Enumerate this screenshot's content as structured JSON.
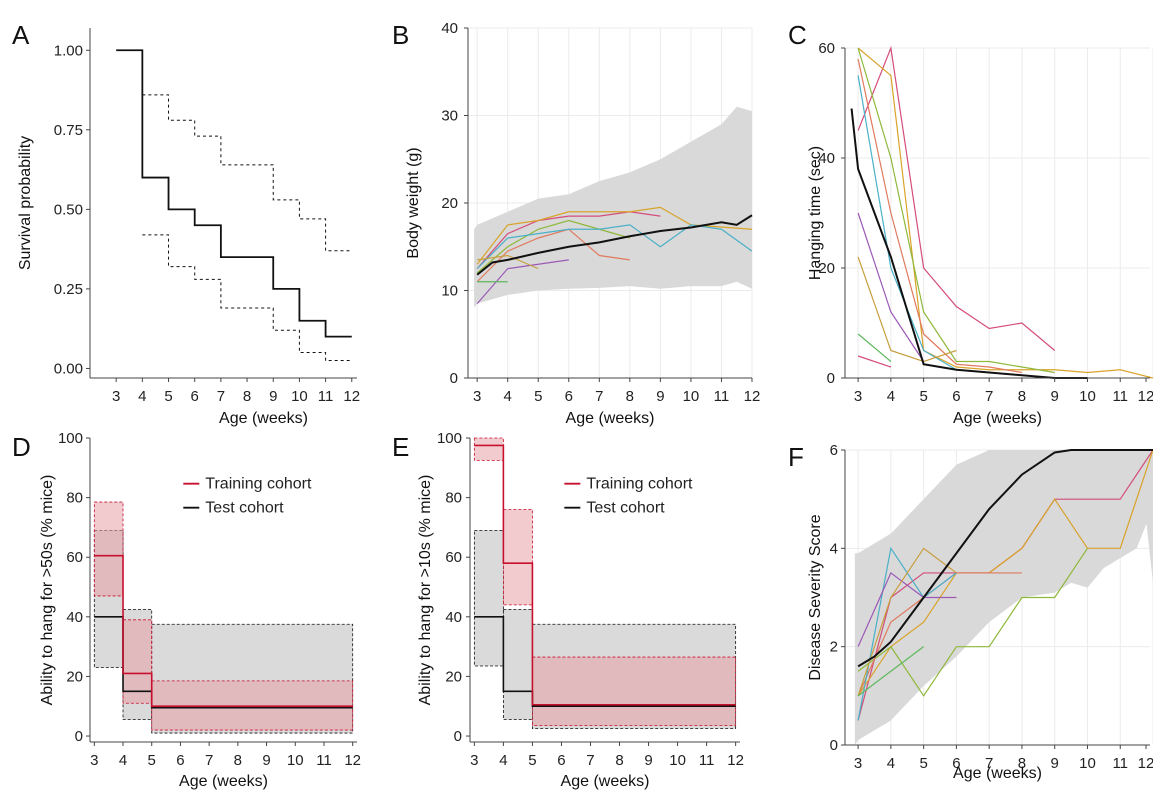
{
  "colors": {
    "dark": "#111111",
    "training": "#c8102e",
    "training_fill": "#e8a0a8",
    "test_fill": "#d4d4d4",
    "gray_band": "#d9d9d9",
    "grid": "#ebebeb",
    "individual": [
      "#d44d7a",
      "#d9a32a",
      "#8fb83a",
      "#e07a5f",
      "#4ab0c8",
      "#9b59b6",
      "#c8a040",
      "#5cb85c"
    ]
  },
  "chart_data": [
    {
      "panel": "A",
      "type": "line",
      "xlabel": "Age (weeks)",
      "ylabel": "Survival probability",
      "xlim": [
        2.0,
        12.2
      ],
      "ylim": [
        -0.03,
        1.07
      ],
      "xticks": [
        "3",
        "4",
        "5",
        "6",
        "7",
        "8",
        "9",
        "10",
        "11",
        "12"
      ],
      "xtick_values": [
        3,
        4,
        5,
        6,
        7,
        8,
        9,
        10,
        11,
        12
      ],
      "yticks": [
        "0.00",
        "0.25",
        "0.50",
        "0.75",
        "1.00"
      ],
      "ytick_values": [
        0,
        0.25,
        0.5,
        0.75,
        1.0
      ],
      "grid": false,
      "series": [
        {
          "style": "step-solid",
          "x": [
            3,
            4,
            5,
            6,
            7,
            9,
            10,
            11,
            12
          ],
          "y": [
            1.0,
            0.6,
            0.5,
            0.45,
            0.35,
            0.25,
            0.15,
            0.1,
            0.1
          ]
        },
        {
          "style": "step-dashed",
          "x": [
            4,
            5,
            6,
            7,
            9,
            10,
            11,
            12
          ],
          "y": [
            0.86,
            0.78,
            0.73,
            0.64,
            0.53,
            0.47,
            0.37,
            0.37
          ]
        },
        {
          "style": "step-dashed",
          "x": [
            4,
            5,
            6,
            7,
            9,
            10,
            11,
            12
          ],
          "y": [
            0.42,
            0.32,
            0.28,
            0.19,
            0.12,
            0.05,
            0.025,
            0.025
          ]
        }
      ]
    },
    {
      "panel": "B",
      "type": "line",
      "xlabel": "Age (weeks)",
      "ylabel": "Body weight (g)",
      "xlim": [
        2.7,
        12.0
      ],
      "ylim": [
        0,
        40
      ],
      "xticks": [
        "3",
        "4",
        "5",
        "6",
        "7",
        "8",
        "9",
        "10",
        "11",
        "12"
      ],
      "xtick_values": [
        3,
        4,
        5,
        6,
        7,
        8,
        9,
        10,
        11,
        12
      ],
      "yticks": [
        "0",
        "10",
        "20",
        "30",
        "40"
      ],
      "ytick_values": [
        0,
        10,
        20,
        30,
        40
      ],
      "grid": true,
      "band": {
        "x": [
          2.9,
          3,
          4,
          5,
          6,
          7,
          8,
          9,
          10,
          11,
          11.5,
          12
        ],
        "upper": [
          17,
          17.5,
          19,
          20.5,
          21,
          22.5,
          23.5,
          25,
          27,
          29,
          31,
          30.5
        ],
        "lower": [
          8,
          8.5,
          9.5,
          10,
          10.2,
          10.3,
          10.5,
          10.2,
          10.5,
          10.5,
          11,
          10.2
        ]
      },
      "mean": {
        "x": [
          3,
          3.5,
          4,
          5,
          6,
          7,
          8,
          9,
          10,
          11,
          11.5,
          12
        ],
        "y": [
          11.8,
          13.2,
          13.5,
          14.3,
          15,
          15.5,
          16.2,
          16.8,
          17.2,
          17.8,
          17.5,
          18.6
        ]
      },
      "individuals": [
        {
          "x": [
            3,
            4,
            5,
            6,
            7,
            8,
            9
          ],
          "y": [
            12.5,
            16.5,
            18,
            18.5,
            18.5,
            19,
            18.5
          ]
        },
        {
          "x": [
            3,
            4,
            5,
            6,
            7,
            8,
            9,
            10,
            12
          ],
          "y": [
            13,
            17.5,
            18,
            19,
            19,
            19,
            19.5,
            17.5,
            17
          ]
        },
        {
          "x": [
            3,
            4,
            5,
            6,
            7,
            8
          ],
          "y": [
            12,
            15,
            17,
            18,
            17,
            16
          ]
        },
        {
          "x": [
            3,
            4,
            5,
            6,
            7,
            8
          ],
          "y": [
            11,
            14.5,
            16,
            17,
            14,
            13.5
          ]
        },
        {
          "x": [
            3,
            4,
            5,
            6,
            7,
            8,
            9,
            10,
            11,
            12
          ],
          "y": [
            12.5,
            16,
            16.5,
            17,
            17,
            17.5,
            15,
            17.5,
            17,
            14.5
          ]
        },
        {
          "x": [
            3,
            4,
            5,
            6
          ],
          "y": [
            8.5,
            12.5,
            13,
            13.5
          ]
        },
        {
          "x": [
            3,
            4,
            5
          ],
          "y": [
            13.5,
            14,
            12.5
          ]
        },
        {
          "x": [
            3,
            4
          ],
          "y": [
            11,
            11
          ]
        }
      ]
    },
    {
      "panel": "C",
      "type": "line",
      "xlabel": "Age (weeks)",
      "ylabel": "Hanging time (sec)",
      "xlim": [
        2.6,
        12.0
      ],
      "ylim": [
        0,
        60
      ],
      "xticks": [
        "3",
        "4",
        "5",
        "6",
        "7",
        "8",
        "9",
        "10",
        "11",
        "12"
      ],
      "xtick_values": [
        3,
        4,
        5,
        6,
        7,
        8,
        9,
        10,
        11,
        12
      ],
      "yticks": [
        "0",
        "20",
        "40",
        "60"
      ],
      "ytick_values": [
        0,
        20,
        40,
        60
      ],
      "grid": true,
      "mean": {
        "x": [
          2.8,
          3,
          4,
          5,
          6,
          7,
          8,
          9,
          10
        ],
        "y": [
          49,
          38,
          22,
          2.5,
          1.5,
          1,
          0.5,
          0,
          0
        ]
      },
      "individuals": [
        {
          "x": [
            3,
            4,
            5,
            6,
            7,
            8,
            9
          ],
          "y": [
            45,
            60,
            20,
            13,
            9,
            10,
            5
          ]
        },
        {
          "x": [
            3,
            4,
            5,
            6,
            7,
            8,
            9,
            10,
            11,
            12
          ],
          "y": [
            60,
            55,
            5,
            2,
            1.5,
            1.5,
            1.5,
            1,
            1.5,
            0
          ]
        },
        {
          "x": [
            3,
            4,
            5,
            6,
            7,
            8,
            9
          ],
          "y": [
            60,
            40,
            12,
            3,
            3,
            2,
            1
          ]
        },
        {
          "x": [
            3,
            4,
            5,
            6,
            7,
            8
          ],
          "y": [
            58,
            30,
            8,
            2.5,
            2,
            1
          ]
        },
        {
          "x": [
            3,
            4,
            5,
            6
          ],
          "y": [
            55,
            20,
            5,
            1.5
          ]
        },
        {
          "x": [
            3,
            4,
            5
          ],
          "y": [
            30,
            12,
            3
          ]
        },
        {
          "x": [
            3,
            4,
            5,
            6
          ],
          "y": [
            22,
            5,
            3,
            5
          ]
        },
        {
          "x": [
            3,
            4
          ],
          "y": [
            8,
            3
          ]
        },
        {
          "x": [
            3,
            4
          ],
          "y": [
            4,
            2
          ]
        }
      ]
    },
    {
      "panel": "D",
      "type": "line",
      "xlabel": "Age (weeks)",
      "ylabel": "Ability to hang for >50s (% mice)",
      "xlim": [
        2.85,
        12.15
      ],
      "ylim": [
        -2,
        100
      ],
      "xticks": [
        "3",
        "4",
        "5",
        "6",
        "7",
        "8",
        "9",
        "10",
        "11",
        "12"
      ],
      "xtick_values": [
        3,
        4,
        5,
        6,
        7,
        8,
        9,
        10,
        11,
        12
      ],
      "yticks": [
        "0",
        "20",
        "40",
        "60",
        "80",
        "100"
      ],
      "ytick_values": [
        0,
        20,
        40,
        60,
        80,
        100
      ],
      "grid": false,
      "legend": [
        {
          "name": "Training cohort",
          "color": "#c8102e"
        },
        {
          "name": "Test cohort",
          "color": "#111111"
        }
      ],
      "series": [
        {
          "name": "Training cohort",
          "steps": [
            [
              3,
              4,
              60.5,
              47,
              78.5
            ],
            [
              4,
              5,
              21,
              11,
              39
            ],
            [
              5,
              12,
              10,
              2,
              18.5
            ]
          ]
        },
        {
          "name": "Test cohort",
          "steps": [
            [
              3,
              4,
              40,
              23,
              69
            ],
            [
              4,
              5,
              15,
              5.5,
              42.5
            ],
            [
              5,
              12,
              9.5,
              1,
              37.5
            ]
          ]
        }
      ]
    },
    {
      "panel": "E",
      "type": "line",
      "xlabel": "Age (weeks)",
      "ylabel": "Ability to hang for >10s (% mice)",
      "xlim": [
        2.85,
        12.15
      ],
      "ylim": [
        -2,
        100
      ],
      "xticks": [
        "3",
        "4",
        "5",
        "6",
        "7",
        "8",
        "9",
        "10",
        "11",
        "12"
      ],
      "xtick_values": [
        3,
        4,
        5,
        6,
        7,
        8,
        9,
        10,
        11,
        12
      ],
      "yticks": [
        "0",
        "20",
        "40",
        "60",
        "80",
        "100"
      ],
      "ytick_values": [
        0,
        20,
        40,
        60,
        80,
        100
      ],
      "grid": false,
      "legend": [
        {
          "name": "Training cohort",
          "color": "#c8102e"
        },
        {
          "name": "Test cohort",
          "color": "#111111"
        }
      ],
      "series": [
        {
          "name": "Training cohort",
          "steps": [
            [
              3,
              4,
              97.5,
              92.5,
              100
            ],
            [
              4,
              5,
              58,
              44,
              76
            ],
            [
              5,
              12,
              10.5,
              3.5,
              26.5
            ]
          ]
        },
        {
          "name": "Test cohort",
          "steps": [
            [
              3,
              4,
              40,
              23.5,
              69
            ],
            [
              4,
              5,
              15,
              5.5,
              42.5
            ],
            [
              5,
              12,
              10,
              2.5,
              37.5
            ]
          ]
        }
      ]
    },
    {
      "panel": "F",
      "type": "line",
      "xlabel": "Age (weeks)",
      "ylabel": "Disease Severity Score",
      "xlim": [
        2.6,
        12.0
      ],
      "ylim": [
        0,
        6
      ],
      "xticks": [
        "3",
        "4",
        "5",
        "6",
        "7",
        "8",
        "9",
        "10",
        "11",
        "12"
      ],
      "xtick_values": [
        3,
        4,
        5,
        6,
        7,
        8,
        9,
        10,
        11,
        12
      ],
      "yticks": [
        "0",
        "2",
        "4",
        "6"
      ],
      "ytick_values": [
        0,
        2,
        4,
        6
      ],
      "grid": true,
      "band": {
        "x": [
          2.9,
          3,
          4,
          5,
          6,
          7,
          8,
          9,
          9.5,
          10,
          10.5,
          11,
          11.5,
          11.8,
          12
        ],
        "upper": [
          3.9,
          3.9,
          4.3,
          5,
          5.7,
          6,
          6,
          6,
          6,
          6,
          6,
          6,
          6,
          6,
          6
        ],
        "lower": [
          0,
          0.1,
          0.5,
          1.2,
          1.8,
          2.5,
          3,
          3.1,
          3.3,
          3.2,
          3.6,
          3.8,
          4,
          4.5,
          3.3
        ]
      },
      "mean": {
        "x": [
          3,
          3.5,
          4,
          5,
          6,
          7,
          8,
          9,
          9.5,
          10,
          11,
          12
        ],
        "y": [
          1.6,
          1.8,
          2.1,
          3,
          3.9,
          4.8,
          5.5,
          5.95,
          6,
          6,
          6,
          6
        ]
      },
      "individuals": [
        {
          "x": [
            3,
            4,
            5,
            6,
            7,
            8,
            9,
            10,
            11,
            12
          ],
          "y": [
            0.5,
            3,
            3.5,
            3.5,
            3.5,
            4,
            5,
            5,
            5,
            6
          ]
        },
        {
          "x": [
            3,
            4,
            5,
            6,
            7,
            8,
            9,
            10,
            11,
            12
          ],
          "y": [
            1,
            2,
            2.5,
            3.5,
            3.5,
            4,
            5,
            4,
            4,
            6
          ]
        },
        {
          "x": [
            3,
            4,
            5,
            6,
            7,
            8,
            9,
            10
          ],
          "y": [
            1.5,
            2,
            1,
            2,
            2,
            3,
            3,
            4
          ]
        },
        {
          "x": [
            3,
            4,
            5,
            6,
            7,
            8
          ],
          "y": [
            1,
            2.5,
            3,
            3.5,
            3.5,
            3.5
          ]
        },
        {
          "x": [
            3,
            4,
            5,
            6
          ],
          "y": [
            0.5,
            4,
            3,
            3.5
          ]
        },
        {
          "x": [
            3,
            4,
            5,
            6
          ],
          "y": [
            2,
            3.5,
            3,
            3
          ]
        },
        {
          "x": [
            3,
            4,
            5,
            6
          ],
          "y": [
            1,
            3,
            4,
            3.5
          ]
        },
        {
          "x": [
            3,
            4,
            5
          ],
          "y": [
            1,
            1.5,
            2
          ]
        }
      ]
    }
  ]
}
